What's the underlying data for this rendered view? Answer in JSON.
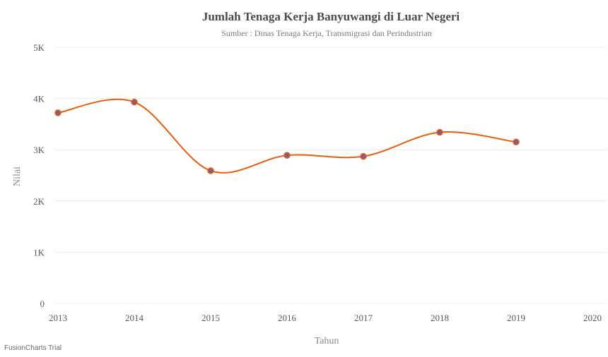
{
  "chart_data": {
    "type": "line",
    "title": "Jumlah Tenaga Kerja Banyuwangi di Luar Negeri",
    "subtitle": "Sumber : Dinas Tenaga Kerja, Transmigrasi dan Perindustrian",
    "xlabel": "Tahun",
    "ylabel": "Nilai",
    "x_ticks": [
      "2013",
      "2014",
      "2015",
      "2016",
      "2017",
      "2018",
      "2019",
      "2020"
    ],
    "y_ticks": [
      "0",
      "1K",
      "2K",
      "3K",
      "4K",
      "5K"
    ],
    "xlim": [
      2013,
      2020
    ],
    "ylim": [
      0,
      5000
    ],
    "grid": true,
    "smooth": true,
    "series": [
      {
        "color": "#e85d0c",
        "marker_color": "#8a5a86",
        "x": [
          2013,
          2014,
          2015,
          2016,
          2017,
          2018,
          2019
        ],
        "y": [
          3720,
          3930,
          2590,
          2890,
          2870,
          3340,
          3150
        ]
      }
    ]
  },
  "watermark": "FusionCharts Trial"
}
